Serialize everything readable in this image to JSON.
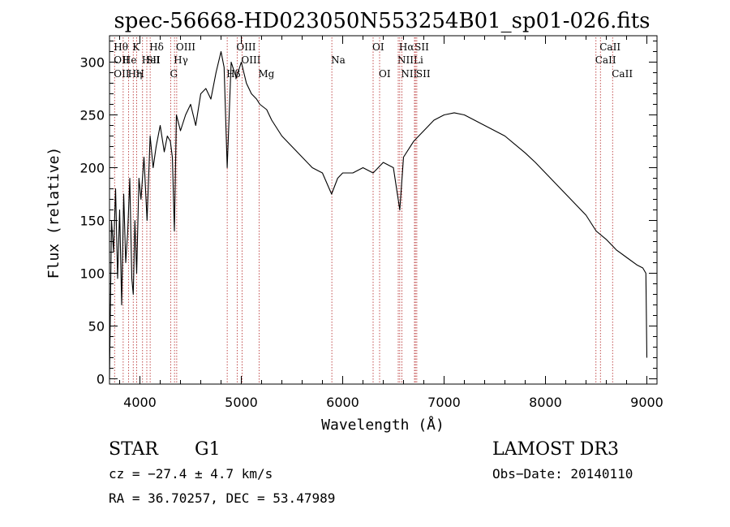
{
  "chart_data": {
    "type": "line",
    "title": "spec-56668-HD023050N553254B01_sp01-026.fits",
    "xlabel": "Wavelength (Å)",
    "ylabel": "Flux (relative)",
    "xlim": [
      3700,
      9100
    ],
    "ylim": [
      -5,
      325
    ],
    "xticks": [
      4000,
      5000,
      6000,
      7000,
      8000,
      9000
    ],
    "yticks": [
      0,
      50,
      100,
      150,
      200,
      250,
      300
    ],
    "grid": false,
    "series": [
      {
        "name": "spectrum",
        "x": [
          3700,
          3720,
          3740,
          3760,
          3780,
          3800,
          3820,
          3840,
          3860,
          3880,
          3900,
          3920,
          3934,
          3950,
          3968,
          3990,
          4010,
          4040,
          4070,
          4101,
          4130,
          4160,
          4200,
          4240,
          4270,
          4300,
          4320,
          4340,
          4360,
          4400,
          4450,
          4500,
          4550,
          4600,
          4650,
          4700,
          4750,
          4800,
          4830,
          4861,
          4900,
          4950,
          5000,
          5050,
          5100,
          5150,
          5183,
          5250,
          5300,
          5400,
          5500,
          5600,
          5700,
          5800,
          5890,
          5950,
          6000,
          6100,
          6200,
          6300,
          6400,
          6500,
          6563,
          6600,
          6700,
          6800,
          6900,
          7000,
          7100,
          7200,
          7300,
          7400,
          7500,
          7600,
          7700,
          7800,
          7900,
          8000,
          8100,
          8200,
          8300,
          8400,
          8500,
          8600,
          8700,
          8800,
          8900,
          8960,
          8990,
          9000
        ],
        "y": [
          0,
          150,
          120,
          180,
          95,
          160,
          70,
          175,
          110,
          140,
          190,
          95,
          80,
          150,
          100,
          190,
          170,
          210,
          150,
          230,
          200,
          220,
          240,
          215,
          230,
          225,
          210,
          140,
          250,
          235,
          250,
          260,
          240,
          270,
          275,
          265,
          290,
          310,
          295,
          200,
          300,
          285,
          300,
          280,
          270,
          265,
          260,
          255,
          245,
          230,
          220,
          210,
          200,
          195,
          175,
          190,
          195,
          195,
          200,
          195,
          205,
          200,
          160,
          210,
          225,
          235,
          245,
          250,
          252,
          250,
          245,
          240,
          235,
          230,
          222,
          214,
          205,
          195,
          185,
          175,
          165,
          155,
          140,
          132,
          122,
          115,
          108,
          105,
          100,
          20
        ]
      }
    ],
    "lines": [
      {
        "x": 3750,
        "labels": [
          {
            "text": "Hθ",
            "row": 0
          },
          {
            "text": "OII",
            "row": 1
          },
          {
            "text": "OII",
            "row": 2
          }
        ]
      },
      {
        "x": 3835,
        "labels": [
          {
            "text": "He",
            "row": 1
          }
        ]
      },
      {
        "x": 3889,
        "labels": [
          {
            "text": "Hη",
            "row": 2
          }
        ]
      },
      {
        "x": 3934,
        "labels": [
          {
            "text": "K",
            "row": 0
          }
        ]
      },
      {
        "x": 3968,
        "labels": [
          {
            "text": "H",
            "row": 2
          }
        ]
      },
      {
        "x": 4026,
        "labels": [
          {
            "text": "HeI",
            "row": 1
          }
        ]
      },
      {
        "x": 4068,
        "labels": [
          {
            "text": "SII",
            "row": 1
          }
        ]
      },
      {
        "x": 4101,
        "labels": [
          {
            "text": "Hδ",
            "row": 0
          }
        ]
      },
      {
        "x": 4304,
        "labels": [
          {
            "text": "G",
            "row": 2
          }
        ]
      },
      {
        "x": 4341,
        "labels": [
          {
            "text": "Hγ",
            "row": 1
          }
        ]
      },
      {
        "x": 4363,
        "labels": [
          {
            "text": "OIII",
            "row": 0
          }
        ]
      },
      {
        "x": 4861,
        "labels": [
          {
            "text": "Hβ",
            "row": 2
          }
        ]
      },
      {
        "x": 4959,
        "labels": [
          {
            "text": "OIII",
            "row": 0
          }
        ]
      },
      {
        "x": 5007,
        "labels": [
          {
            "text": "OIII",
            "row": 1
          }
        ]
      },
      {
        "x": 5175,
        "labels": [
          {
            "text": "Mg",
            "row": 2
          }
        ]
      },
      {
        "x": 5893,
        "labels": [
          {
            "text": "Na",
            "row": 1
          }
        ]
      },
      {
        "x": 6300,
        "labels": [
          {
            "text": "OI",
            "row": 0
          }
        ]
      },
      {
        "x": 6364,
        "labels": [
          {
            "text": "OI",
            "row": 2
          }
        ]
      },
      {
        "x": 6548,
        "labels": [
          {
            "text": "NII",
            "row": 1
          }
        ]
      },
      {
        "x": 6563,
        "labels": [
          {
            "text": "Hα",
            "row": 0
          }
        ]
      },
      {
        "x": 6583,
        "labels": [
          {
            "text": "NII",
            "row": 2
          }
        ]
      },
      {
        "x": 6708,
        "labels": [
          {
            "text": "Li",
            "row": 1
          }
        ]
      },
      {
        "x": 6717,
        "labels": [
          {
            "text": "SII",
            "row": 0
          }
        ]
      },
      {
        "x": 6731,
        "labels": [
          {
            "text": "SII",
            "row": 2
          }
        ]
      },
      {
        "x": 8498,
        "labels": [
          {
            "text": "CaII",
            "row": 1
          }
        ]
      },
      {
        "x": 8542,
        "labels": [
          {
            "text": "CaII",
            "row": 0
          }
        ]
      },
      {
        "x": 8662,
        "labels": [
          {
            "text": "CaII",
            "row": 2
          }
        ]
      }
    ]
  },
  "info": {
    "object_type": "STAR",
    "subclass": "G1",
    "survey": "LAMOST DR3",
    "cz": "cz = −27.4 ± 4.7 km/s",
    "obs_date": "Obs−Date: 20140110",
    "coords": "RA =  36.70257, DEC =  53.47989"
  }
}
